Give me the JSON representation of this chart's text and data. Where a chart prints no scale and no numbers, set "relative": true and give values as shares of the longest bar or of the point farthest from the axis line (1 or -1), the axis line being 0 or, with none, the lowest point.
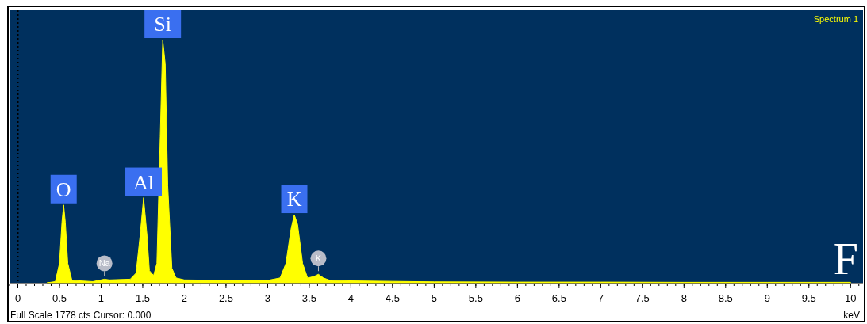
{
  "chart_data": {
    "type": "area",
    "title": "Spectrum 1",
    "xlabel": "keV",
    "relative": true,
    "x": [
      0.35,
      0.45,
      0.5,
      0.53,
      0.55,
      0.57,
      0.6,
      0.65,
      0.9,
      1.0,
      1.04,
      1.1,
      1.35,
      1.42,
      1.47,
      1.51,
      1.55,
      1.58,
      1.63,
      1.67,
      1.71,
      1.74,
      1.77,
      1.8,
      1.85,
      1.9,
      2.0,
      2.5,
      3.0,
      3.15,
      3.22,
      3.28,
      3.32,
      3.36,
      3.42,
      3.48,
      3.55,
      3.61,
      3.67,
      3.75,
      4.0,
      4.5,
      5,
      6,
      7,
      8,
      9,
      10
    ],
    "series": [
      {
        "color": "#ffff00",
        "values": [
          0,
          0.005,
          0.08,
          0.25,
          0.32,
          0.25,
          0.08,
          0.01,
          0.005,
          0.012,
          0.015,
          0.012,
          0.015,
          0.04,
          0.2,
          0.35,
          0.2,
          0.05,
          0.03,
          0.08,
          0.6,
          1,
          0.9,
          0.4,
          0.06,
          0.02,
          0.012,
          0.01,
          0.01,
          0.02,
          0.08,
          0.22,
          0.28,
          0.24,
          0.08,
          0.02,
          0.025,
          0.035,
          0.02,
          0.01,
          0.008,
          0.006,
          0.004,
          0.003,
          0.003,
          0.002,
          0.002,
          0.002
        ]
      }
    ],
    "xlim": [
      -0.1,
      10.15
    ],
    "xticks": [
      0,
      0.5,
      1,
      1.5,
      2,
      2.5,
      3,
      3.5,
      4,
      4.5,
      5,
      5.5,
      6,
      6.5,
      7,
      7.5,
      8,
      8.5,
      9,
      9.5,
      10
    ],
    "ref_lines": [
      {
        "axis": "x",
        "value": 0,
        "color": "#000000",
        "line_style": "dotted"
      }
    ],
    "annotations": [
      {
        "text": "O",
        "x": 0.55,
        "y": 0.32
      },
      {
        "text": "Al",
        "x": 1.51,
        "y": 0.35
      },
      {
        "text": "Si",
        "x": 1.74,
        "y": 1
      },
      {
        "text": "K",
        "x": 3.32,
        "y": 0.28
      },
      {
        "text": "Na",
        "x": 1.04,
        "y": 0.015
      },
      {
        "text": "K",
        "x": 3.61,
        "y": 0.035
      },
      "Full Scale 1778 cts Cursor: 0.000",
      "F"
    ]
  }
}
